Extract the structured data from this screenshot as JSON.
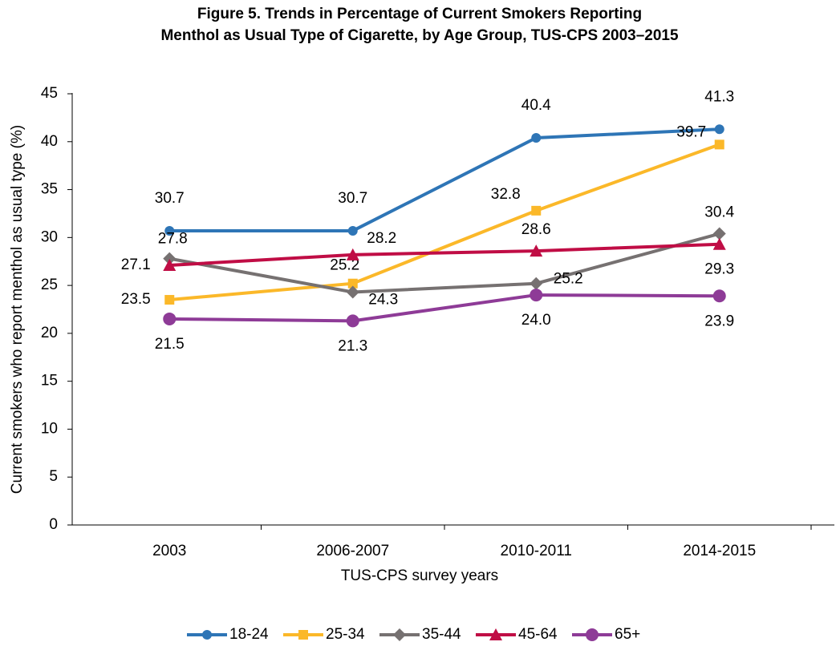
{
  "chart_data": {
    "type": "line",
    "title": [
      "Figure 5. Trends in Percentage of Current Smokers Reporting",
      "Menthol as Usual Type of Cigarette, by Age Group, TUS-CPS 2003–2015"
    ],
    "x_label": "TUS-CPS survey years",
    "y_label": "Current smokers who report menthol as usual type (%)",
    "categories": [
      "2003",
      "2006-2007",
      "2010-2011",
      "2014-2015"
    ],
    "series": [
      {
        "name": "18-24",
        "color": "#2e75b6",
        "values": [
          30.7,
          30.7,
          40.4,
          41.3
        ],
        "value_labels": [
          "30.7",
          "30.7",
          "40.4",
          "41.3"
        ]
      },
      {
        "name": "25-34",
        "color": "#fbb829",
        "values": [
          23.5,
          25.2,
          32.8,
          39.7
        ],
        "value_labels": [
          "23.5",
          "25.2",
          "32.8",
          "39.7"
        ]
      },
      {
        "name": "35-44",
        "color": "#767171",
        "values": [
          27.8,
          24.3,
          25.2,
          30.4
        ],
        "value_labels": [
          "27.8",
          "24.3",
          "25.2",
          "30.4"
        ]
      },
      {
        "name": "45-64",
        "color": "#c00d45",
        "values": [
          27.1,
          28.2,
          28.6,
          29.3
        ],
        "value_labels": [
          "27.1",
          "28.2",
          "28.6",
          "29.3"
        ]
      },
      {
        "name": "65+",
        "color": "#8e3b97",
        "values": [
          21.5,
          21.3,
          24.0,
          23.9
        ],
        "value_labels": [
          "21.5",
          "21.3",
          "24.0",
          "23.9"
        ]
      }
    ],
    "ylim": [
      0,
      45
    ],
    "yticks": [
      0,
      5,
      10,
      15,
      20,
      25,
      30,
      35,
      40,
      45
    ],
    "grid": false,
    "legend": "bottom"
  }
}
